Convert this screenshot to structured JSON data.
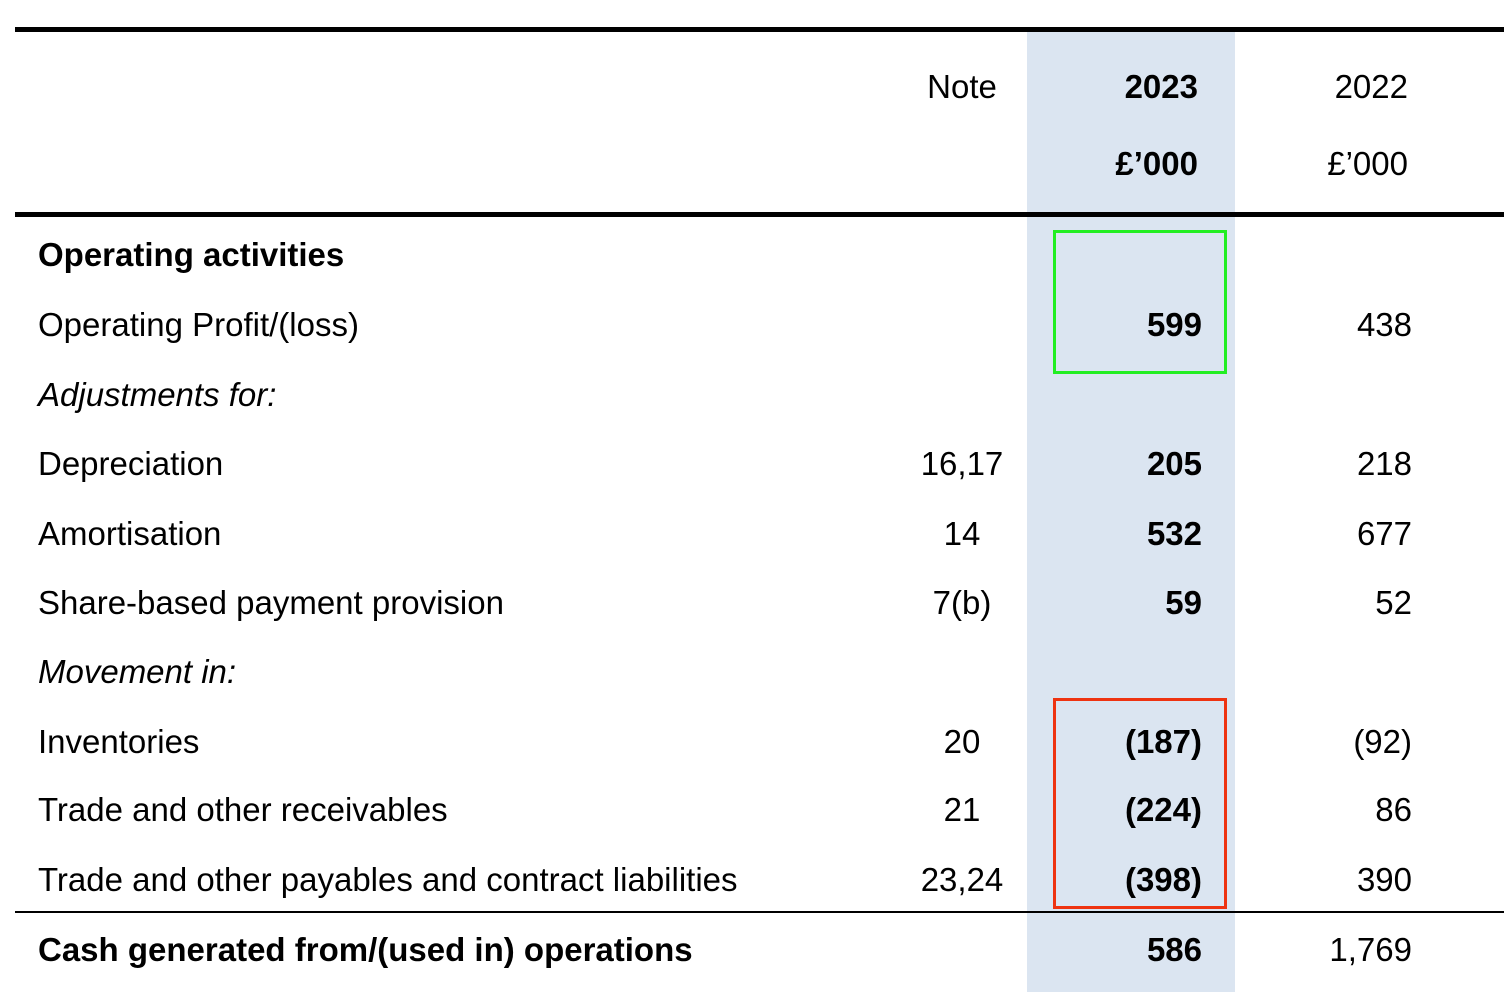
{
  "table": {
    "header": {
      "note": "Note",
      "year_current": "2023",
      "year_prior": "2022",
      "unit_current": "£’000",
      "unit_prior": "£’000"
    },
    "rows": [
      {
        "label": "Operating activities"
      },
      {
        "label": "Operating Profit/(loss)",
        "current": "599",
        "prior": "438"
      },
      {
        "label": "Adjustments for:"
      },
      {
        "label": "Depreciation",
        "note": "16,17",
        "current": "205",
        "prior": "218"
      },
      {
        "label": "Amortisation",
        "note": "14",
        "current": "532",
        "prior": "677"
      },
      {
        "label": "Share-based payment provision",
        "note": "7(b)",
        "current": "59",
        "prior": "52"
      },
      {
        "label": "Movement in:"
      },
      {
        "label": "Inventories",
        "note": "20",
        "current": "(187)",
        "prior": "(92)"
      },
      {
        "label": "Trade and other receivables",
        "note": "21",
        "current": "(224)",
        "prior": "86"
      },
      {
        "label": "Trade and other payables and contract liabilities",
        "note": "23,24",
        "current": "(398)",
        "prior": "390"
      },
      {
        "label": "Cash generated from/(used in) operations",
        "current": "586",
        "prior": "1,769"
      }
    ]
  }
}
